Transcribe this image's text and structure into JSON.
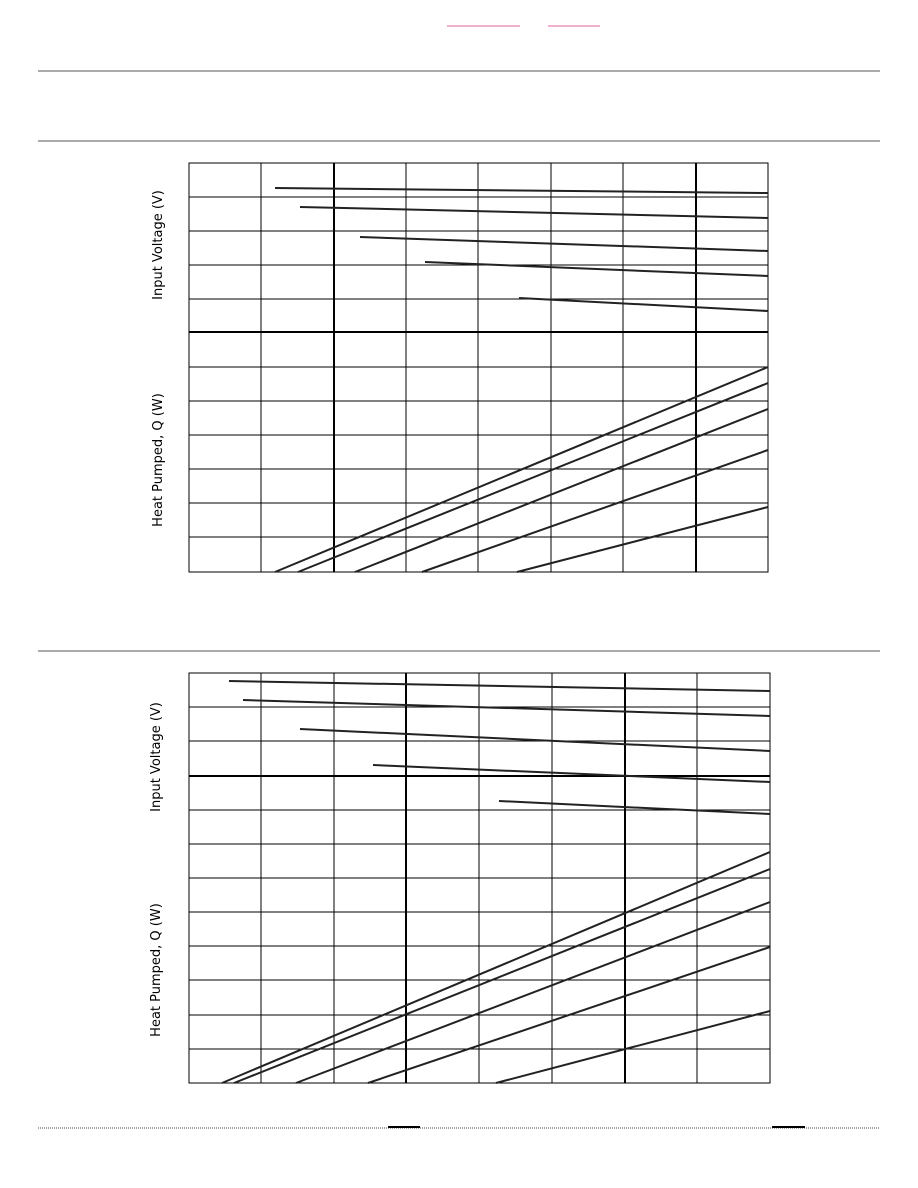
{
  "charts": [
    {
      "voltage_axis_label": "Input Voltage (V)",
      "heat_axis_label": "Heat Pumped, Q (W)"
    },
    {
      "voltage_axis_label": "Input Voltage (V)",
      "heat_axis_label": "Heat Pumped, Q (W)"
    }
  ]
}
